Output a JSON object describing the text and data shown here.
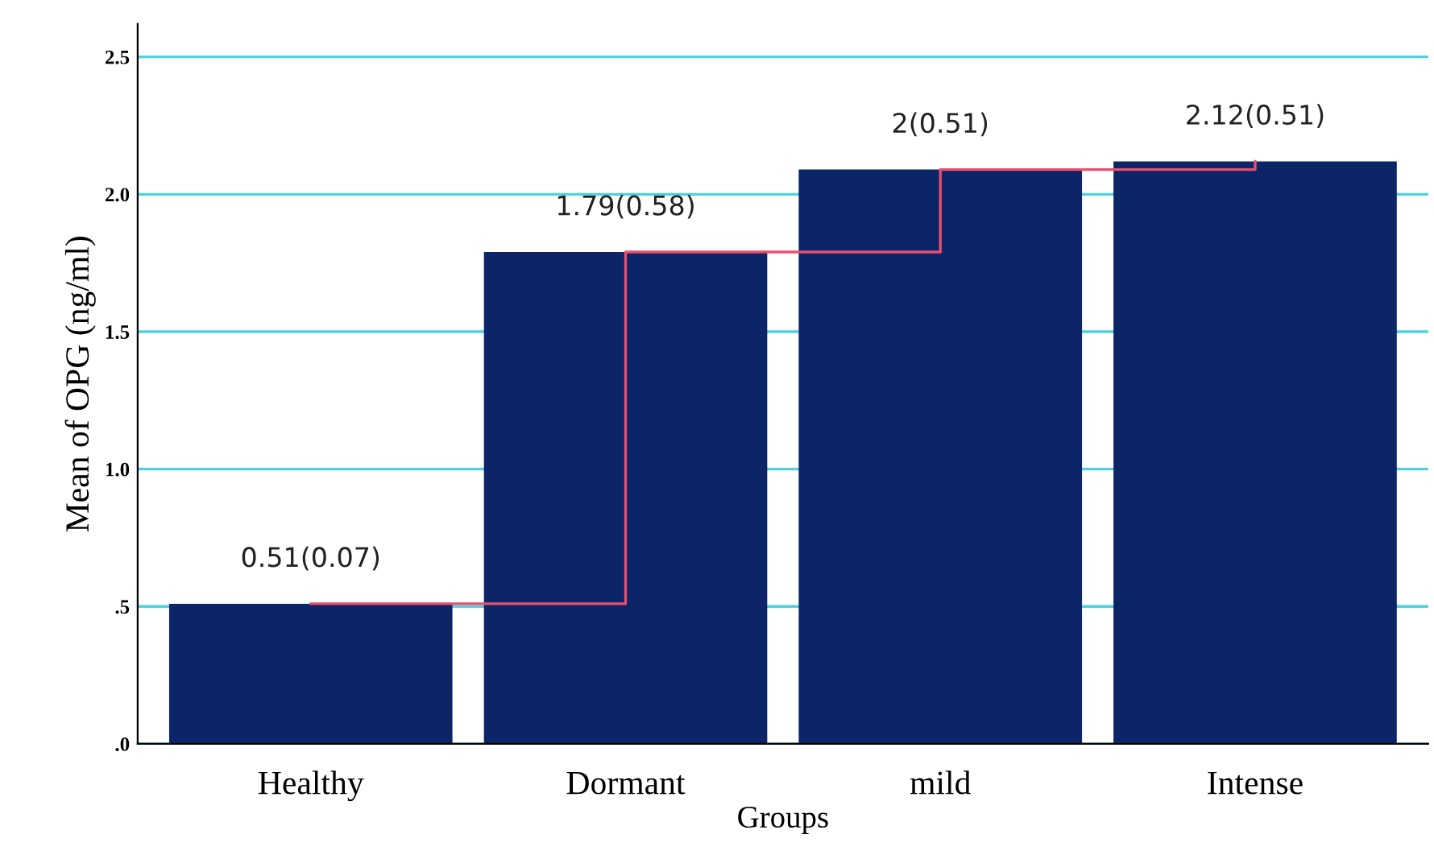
{
  "chart_data": {
    "type": "bar",
    "xlabel": "Groups",
    "ylabel": "Mean of OPG (ng/ml)",
    "categories": [
      "Healthy",
      "Dormant",
      "mild",
      "Intense"
    ],
    "series": [
      {
        "color": "#0c2468",
        "values": [
          0.51,
          1.79,
          2.09,
          2.12
        ],
        "value_labels": [
          "0.51(0.07)",
          "1.79(0.58)",
          "2(0.51)",
          "2.12(0.51)"
        ]
      },
      {
        "type": "step",
        "color": "#e8506e",
        "values": [
          0.51,
          1.79,
          2.09,
          2.12
        ]
      }
    ],
    "ylim": [
      0,
      2.62
    ],
    "yticks": [
      {
        "value": 0,
        "label": ".0"
      },
      {
        "value": 0.5,
        "label": ".5"
      },
      {
        "value": 1,
        "label": "1.0"
      },
      1.5,
      {
        "value": 2,
        "label": "2.0"
      },
      2.5
    ],
    "grid": "y",
    "legend": false
  }
}
